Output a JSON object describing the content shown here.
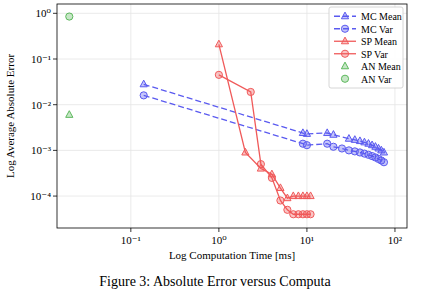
{
  "chart_data": {
    "type": "line",
    "caption": "Figure 3: Absolute Error versus Computa",
    "x_label": "Log Computation Time [ms]",
    "y_label": "Log Average Absolute Error",
    "log": true,
    "grid": true,
    "legend": "upper right",
    "xlim": [
      0.0145,
      137
    ],
    "ylim": [
      2e-05,
      1.6
    ],
    "xticks": [
      {
        "value": 0.1,
        "label": "10⁻¹"
      },
      {
        "value": 1,
        "label": "10⁰"
      },
      {
        "value": 10,
        "label": "10¹"
      },
      {
        "value": 100,
        "label": "10²"
      }
    ],
    "yticks": [
      {
        "value": 0.0001,
        "label": "10⁻⁴"
      },
      {
        "value": 0.001,
        "label": "10⁻³"
      },
      {
        "value": 0.01,
        "label": "10⁻²"
      },
      {
        "value": 0.1,
        "label": "10⁻¹"
      },
      {
        "value": 1,
        "label": "10⁰"
      }
    ],
    "series": [
      {
        "name": "MC Mean",
        "color": "#5a5af0",
        "marker": "triangle",
        "line_style": "dashed",
        "x": [
          0.14,
          9,
          10,
          17,
          20,
          30,
          35,
          40,
          45,
          50,
          55,
          60,
          65,
          70,
          75
        ],
        "values": [
          0.028,
          0.0024,
          0.0023,
          0.0024,
          0.0022,
          0.0018,
          0.0017,
          0.0016,
          0.0015,
          0.0014,
          0.0013,
          0.0012,
          0.0011,
          0.001,
          0.0009
        ]
      },
      {
        "name": "MC Var",
        "color": "#5a5af0",
        "marker": "circle",
        "line_style": "dashed",
        "x": [
          0.14,
          9,
          10,
          17,
          20,
          25,
          30,
          35,
          40,
          45,
          50,
          55,
          60,
          65,
          70,
          75
        ],
        "values": [
          0.016,
          0.0014,
          0.0013,
          0.0014,
          0.0012,
          0.0011,
          0.001,
          0.00095,
          0.0009,
          0.00085,
          0.0008,
          0.00075,
          0.0007,
          0.00065,
          0.0006,
          0.00055
        ]
      },
      {
        "name": "SP Mean",
        "color": "#f05a5a",
        "marker": "triangle",
        "line_style": "solid",
        "x": [
          1.0,
          2.0,
          3.0,
          4.0,
          5.0,
          6.0,
          7.0,
          8.0,
          9.0,
          10.0,
          11.0
        ],
        "values": [
          0.21,
          0.0009,
          0.0004,
          0.0003,
          0.00015,
          9e-05,
          0.0001,
          0.0001,
          0.0001,
          0.0001,
          0.0001
        ]
      },
      {
        "name": "SP Var",
        "color": "#f05a5a",
        "marker": "circle",
        "line_style": "solid",
        "x": [
          1.0,
          2.3,
          3.0,
          4.0,
          5.0,
          6.0,
          7.0,
          8.0,
          9.0,
          10.0,
          11.0
        ],
        "values": [
          0.045,
          0.019,
          0.0005,
          0.00025,
          8e-05,
          5e-05,
          4e-05,
          4e-05,
          4e-05,
          4e-05,
          4e-05
        ]
      },
      {
        "name": "AN Mean",
        "color": "#5cb85c",
        "marker": "triangle",
        "line_style": "none",
        "x": [
          0.02
        ],
        "values": [
          0.006
        ]
      },
      {
        "name": "AN Var",
        "color": "#5cb85c",
        "marker": "circle",
        "line_style": "none",
        "x": [
          0.02
        ],
        "values": [
          0.85
        ]
      }
    ]
  }
}
